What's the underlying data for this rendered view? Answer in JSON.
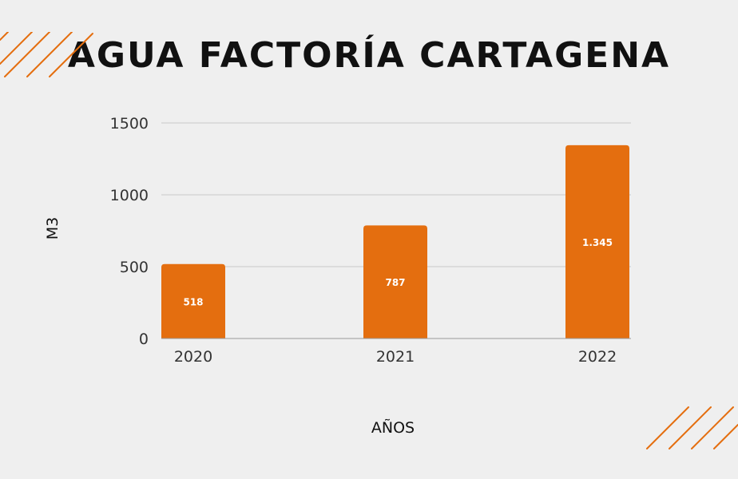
{
  "colors": {
    "background": "#efefef",
    "bar": "#e46e0f",
    "grid": "#c9c9c9",
    "axis": "#9a9a9a",
    "text": "#111111",
    "tick_text": "#333333",
    "label_text": "#ffffff",
    "accent_stripes": "#e46e0f"
  },
  "chart_data": {
    "type": "bar",
    "title": "AGUA FACTORÍA CARTAGENA",
    "xlabel": "AÑOS",
    "ylabel": "M3",
    "categories": [
      "2020",
      "2021",
      "2022"
    ],
    "values": [
      518,
      787,
      1345
    ],
    "data_labels": [
      "518",
      "787",
      "1.345"
    ],
    "ylim": [
      0,
      1500
    ],
    "yticks": [
      0,
      500,
      1000,
      1500
    ],
    "grid": true
  },
  "decorations": {
    "top_left": "diagonal-stripes",
    "bottom_right": "diagonal-stripes"
  }
}
